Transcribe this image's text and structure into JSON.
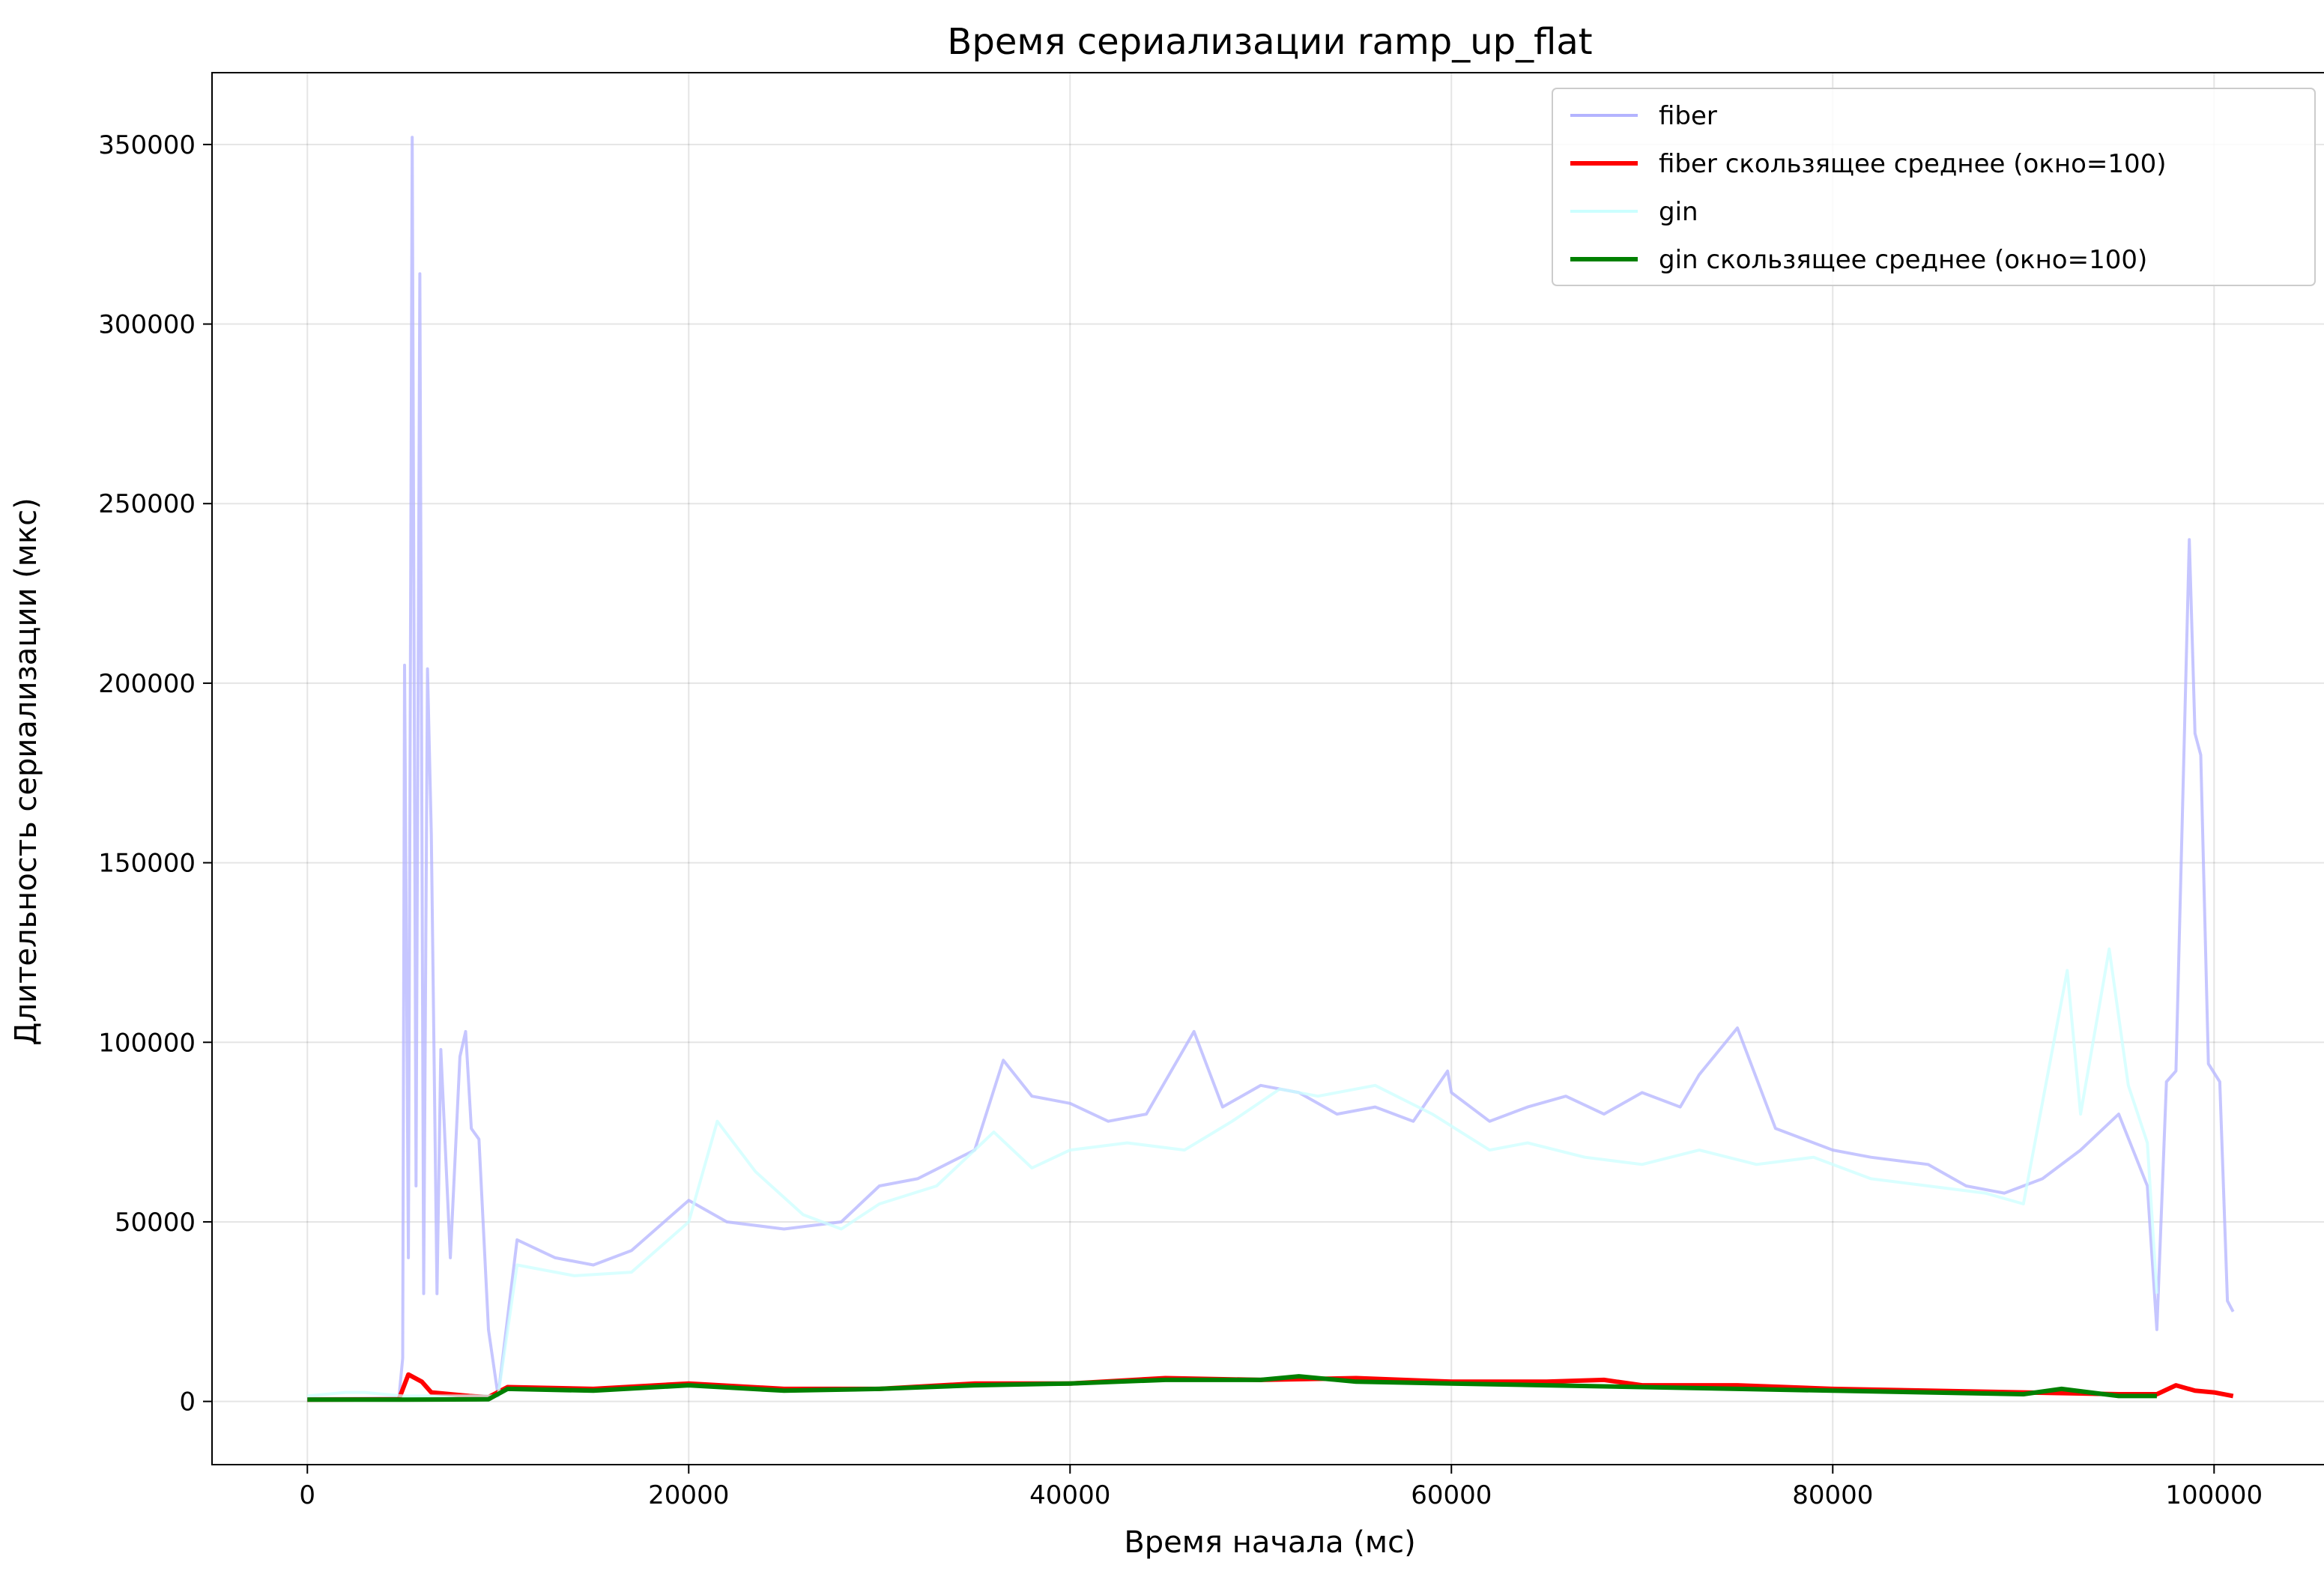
{
  "chart_data": {
    "type": "line",
    "title": "Время сериализации ramp_up_flat",
    "xlabel": "Время начала (мс)",
    "ylabel": "Длительность сериализации (мкс)",
    "xlim": [
      -5000,
      106000
    ],
    "ylim": [
      -17600,
      370000
    ],
    "xticks": [
      0,
      20000,
      40000,
      60000,
      80000,
      100000
    ],
    "xtick_labels": [
      "0",
      "20000",
      "40000",
      "60000",
      "80000",
      "100000"
    ],
    "yticks": [
      0,
      50000,
      100000,
      150000,
      200000,
      250000,
      300000,
      350000
    ],
    "ytick_labels": [
      "0",
      "50000",
      "100000",
      "150000",
      "200000",
      "250000",
      "300000",
      "350000"
    ],
    "grid": true,
    "legend_position": "top-right",
    "series": [
      {
        "name": "fiber",
        "color": "#b3b3ff",
        "style": "raw",
        "points": [
          [
            0,
            800
          ],
          [
            4800,
            900
          ],
          [
            5000,
            12000
          ],
          [
            5100,
            205000
          ],
          [
            5300,
            40000
          ],
          [
            5500,
            352000
          ],
          [
            5700,
            60000
          ],
          [
            5900,
            314000
          ],
          [
            6100,
            30000
          ],
          [
            6300,
            204000
          ],
          [
            6500,
            158000
          ],
          [
            6800,
            30000
          ],
          [
            7000,
            98000
          ],
          [
            7500,
            40000
          ],
          [
            8000,
            96000
          ],
          [
            8300,
            103000
          ],
          [
            8600,
            76000
          ],
          [
            9000,
            73000
          ],
          [
            9500,
            20000
          ],
          [
            10000,
            1500
          ],
          [
            11000,
            45000
          ],
          [
            13000,
            40000
          ],
          [
            15000,
            38000
          ],
          [
            17000,
            42000
          ],
          [
            20000,
            56000
          ],
          [
            22000,
            50000
          ],
          [
            25000,
            48000
          ],
          [
            28000,
            50000
          ],
          [
            30000,
            60000
          ],
          [
            32000,
            62000
          ],
          [
            35000,
            70000
          ],
          [
            36500,
            95000
          ],
          [
            38000,
            85000
          ],
          [
            40000,
            83000
          ],
          [
            42000,
            78000
          ],
          [
            44000,
            80000
          ],
          [
            46500,
            103000
          ],
          [
            48000,
            82000
          ],
          [
            50000,
            88000
          ],
          [
            52000,
            86000
          ],
          [
            54000,
            80000
          ],
          [
            56000,
            82000
          ],
          [
            58000,
            78000
          ],
          [
            59800,
            92000
          ],
          [
            60000,
            86000
          ],
          [
            62000,
            78000
          ],
          [
            64000,
            82000
          ],
          [
            66000,
            85000
          ],
          [
            68000,
            80000
          ],
          [
            70000,
            86000
          ],
          [
            72000,
            82000
          ],
          [
            73000,
            91000
          ],
          [
            75000,
            104000
          ],
          [
            77000,
            76000
          ],
          [
            80000,
            70000
          ],
          [
            82000,
            68000
          ],
          [
            85000,
            66000
          ],
          [
            87000,
            60000
          ],
          [
            89000,
            58000
          ],
          [
            91000,
            62000
          ],
          [
            93000,
            70000
          ],
          [
            95000,
            80000
          ],
          [
            96500,
            60000
          ],
          [
            97000,
            20000
          ],
          [
            97500,
            89000
          ],
          [
            98000,
            92000
          ],
          [
            98700,
            240000
          ],
          [
            99000,
            186000
          ],
          [
            99300,
            180000
          ],
          [
            99700,
            94000
          ],
          [
            100300,
            89000
          ],
          [
            100700,
            28000
          ],
          [
            101000,
            25000
          ]
        ]
      },
      {
        "name": "fiber скользящее среднее (окно=100)",
        "color": "#ff0000",
        "style": "rolling",
        "points": [
          [
            0,
            500
          ],
          [
            4800,
            600
          ],
          [
            5300,
            7500
          ],
          [
            6000,
            5500
          ],
          [
            6500,
            2500
          ],
          [
            7500,
            2000
          ],
          [
            8500,
            1500
          ],
          [
            9500,
            1200
          ],
          [
            10500,
            4000
          ],
          [
            15000,
            3500
          ],
          [
            20000,
            5000
          ],
          [
            25000,
            3500
          ],
          [
            30000,
            3500
          ],
          [
            35000,
            5000
          ],
          [
            40000,
            5000
          ],
          [
            45000,
            6500
          ],
          [
            50000,
            6000
          ],
          [
            55000,
            6500
          ],
          [
            60000,
            5500
          ],
          [
            65000,
            5500
          ],
          [
            68000,
            6000
          ],
          [
            70000,
            4500
          ],
          [
            75000,
            4500
          ],
          [
            80000,
            3500
          ],
          [
            85000,
            3000
          ],
          [
            90000,
            2500
          ],
          [
            95000,
            2000
          ],
          [
            97000,
            2000
          ],
          [
            98000,
            4500
          ],
          [
            99000,
            3000
          ],
          [
            100000,
            2500
          ],
          [
            101000,
            1500
          ]
        ]
      },
      {
        "name": "gin",
        "color": "#ccffff",
        "style": "raw",
        "points": [
          [
            0,
            1500
          ],
          [
            1000,
            2000
          ],
          [
            2000,
            2500
          ],
          [
            3000,
            2500
          ],
          [
            4000,
            2000
          ],
          [
            5000,
            1500
          ],
          [
            10000,
            1500
          ],
          [
            11000,
            38000
          ],
          [
            14000,
            35000
          ],
          [
            17000,
            36000
          ],
          [
            20000,
            50000
          ],
          [
            21500,
            78000
          ],
          [
            23500,
            64000
          ],
          [
            26000,
            52000
          ],
          [
            28000,
            48000
          ],
          [
            30000,
            55000
          ],
          [
            33000,
            60000
          ],
          [
            36000,
            75000
          ],
          [
            38000,
            65000
          ],
          [
            40000,
            70000
          ],
          [
            43000,
            72000
          ],
          [
            46000,
            70000
          ],
          [
            48500,
            78000
          ],
          [
            51000,
            87000
          ],
          [
            53000,
            85000
          ],
          [
            56000,
            88000
          ],
          [
            59000,
            80000
          ],
          [
            62000,
            70000
          ],
          [
            64000,
            72000
          ],
          [
            67000,
            68000
          ],
          [
            70000,
            66000
          ],
          [
            73000,
            70000
          ],
          [
            76000,
            66000
          ],
          [
            79000,
            68000
          ],
          [
            82000,
            62000
          ],
          [
            85000,
            60000
          ],
          [
            88000,
            58000
          ],
          [
            90000,
            55000
          ],
          [
            92300,
            120000
          ],
          [
            93000,
            80000
          ],
          [
            94500,
            126000
          ],
          [
            95500,
            88000
          ],
          [
            96500,
            72000
          ],
          [
            97000,
            30000
          ]
        ]
      },
      {
        "name": "gin скользящее среднее (окно=100)",
        "color": "#008000",
        "style": "rolling",
        "points": [
          [
            0,
            500
          ],
          [
            5000,
            500
          ],
          [
            9500,
            600
          ],
          [
            10500,
            3500
          ],
          [
            15000,
            3000
          ],
          [
            20000,
            4500
          ],
          [
            25000,
            3000
          ],
          [
            30000,
            3500
          ],
          [
            35000,
            4500
          ],
          [
            40000,
            5000
          ],
          [
            45000,
            6000
          ],
          [
            50000,
            6000
          ],
          [
            52000,
            7000
          ],
          [
            55000,
            5500
          ],
          [
            60000,
            5000
          ],
          [
            65000,
            4500
          ],
          [
            70000,
            4000
          ],
          [
            75000,
            3500
          ],
          [
            80000,
            3000
          ],
          [
            85000,
            2500
          ],
          [
            90000,
            2000
          ],
          [
            92000,
            3500
          ],
          [
            95000,
            1500
          ],
          [
            97000,
            1500
          ]
        ]
      }
    ]
  }
}
